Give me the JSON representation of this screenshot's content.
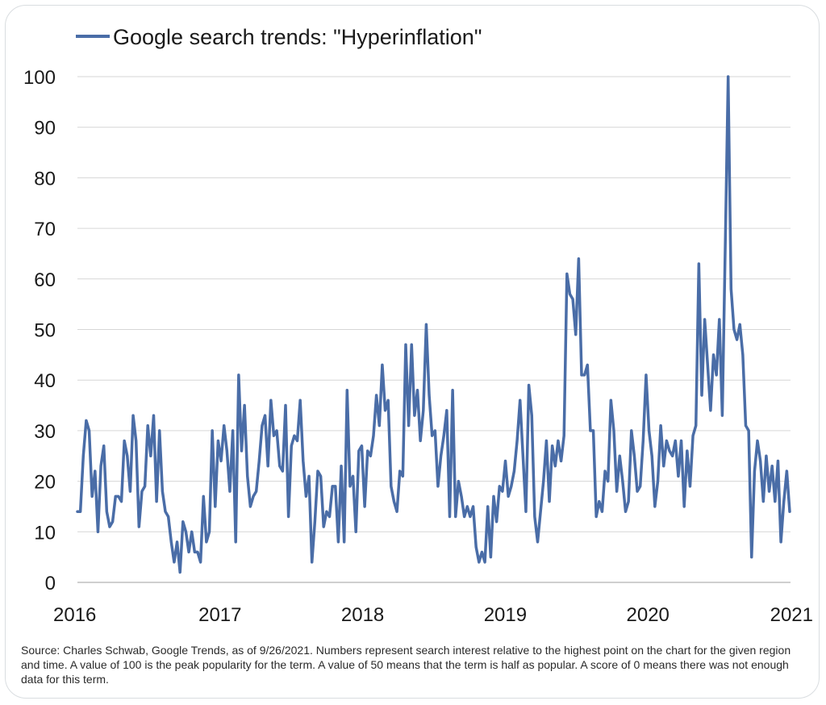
{
  "chart_data": {
    "type": "line",
    "title": "",
    "legend": {
      "label": "Google search trends: \"Hyperinflation\"",
      "placement": "top-left"
    },
    "xlabel": "",
    "ylabel": "",
    "ylim": [
      0,
      100
    ],
    "xlim": [
      2016,
      2021
    ],
    "yticks": [
      0,
      10,
      20,
      30,
      40,
      50,
      60,
      70,
      80,
      90,
      100
    ],
    "xticks": [
      2016,
      2017,
      2018,
      2019,
      2020,
      2021
    ],
    "grid": "horizontal",
    "series": [
      {
        "name": "Google search trends: \"Hyperinflation\"",
        "color": "#4a6da7",
        "values": [
          14,
          14,
          25,
          32,
          30,
          17,
          22,
          10,
          23,
          27,
          14,
          11,
          12,
          17,
          17,
          16,
          28,
          25,
          18,
          33,
          28,
          11,
          18,
          19,
          31,
          25,
          33,
          16,
          30,
          18,
          14,
          13,
          8,
          4,
          8,
          2,
          12,
          10,
          6,
          10,
          6,
          6,
          4,
          17,
          8,
          10,
          30,
          15,
          28,
          24,
          31,
          26,
          18,
          30,
          8,
          41,
          26,
          35,
          21,
          15,
          17,
          18,
          24,
          31,
          33,
          23,
          36,
          29,
          30,
          23,
          22,
          35,
          13,
          27,
          29,
          28,
          36,
          24,
          17,
          21,
          4,
          12,
          22,
          21,
          11,
          14,
          13,
          19,
          19,
          8,
          23,
          8,
          38,
          19,
          21,
          10,
          26,
          27,
          15,
          26,
          25,
          29,
          37,
          31,
          43,
          34,
          36,
          19,
          16,
          14,
          22,
          21,
          47,
          31,
          47,
          33,
          38,
          28,
          34,
          51,
          37,
          29,
          30,
          19,
          25,
          29,
          34,
          13,
          38,
          13,
          20,
          17,
          13,
          15,
          13,
          15,
          7,
          4,
          6,
          4,
          15,
          5,
          17,
          12,
          19,
          18,
          24,
          17,
          19,
          22,
          28,
          36,
          25,
          14,
          39,
          33,
          13,
          8,
          14,
          20,
          28,
          16,
          27,
          23,
          28,
          24,
          29,
          61,
          57,
          56,
          49,
          64,
          41,
          41,
          43,
          30,
          30,
          13,
          16,
          14,
          22,
          20,
          36,
          30,
          18,
          25,
          20,
          14,
          16,
          30,
          25,
          18,
          19,
          28,
          41,
          30,
          25,
          15,
          20,
          31,
          23,
          28,
          26,
          25,
          28,
          21,
          28,
          15,
          26,
          19,
          29,
          31,
          63,
          37,
          52,
          43,
          34,
          45,
          41,
          52,
          33,
          66,
          100,
          58,
          50,
          48,
          51,
          45,
          31,
          30,
          5,
          22,
          28,
          24,
          16,
          25,
          18,
          23,
          16,
          24,
          8,
          16,
          22,
          14
        ]
      }
    ]
  },
  "source_note": "Source: Charles Schwab, Google Trends, as of 9/26/2021. Numbers represent search interest relative to the highest point on the chart for the given region and time. A value of 100 is the peak popularity for the term. A value of 50 means that the term is half as popular. A score of 0 means there was not enough data for this term."
}
